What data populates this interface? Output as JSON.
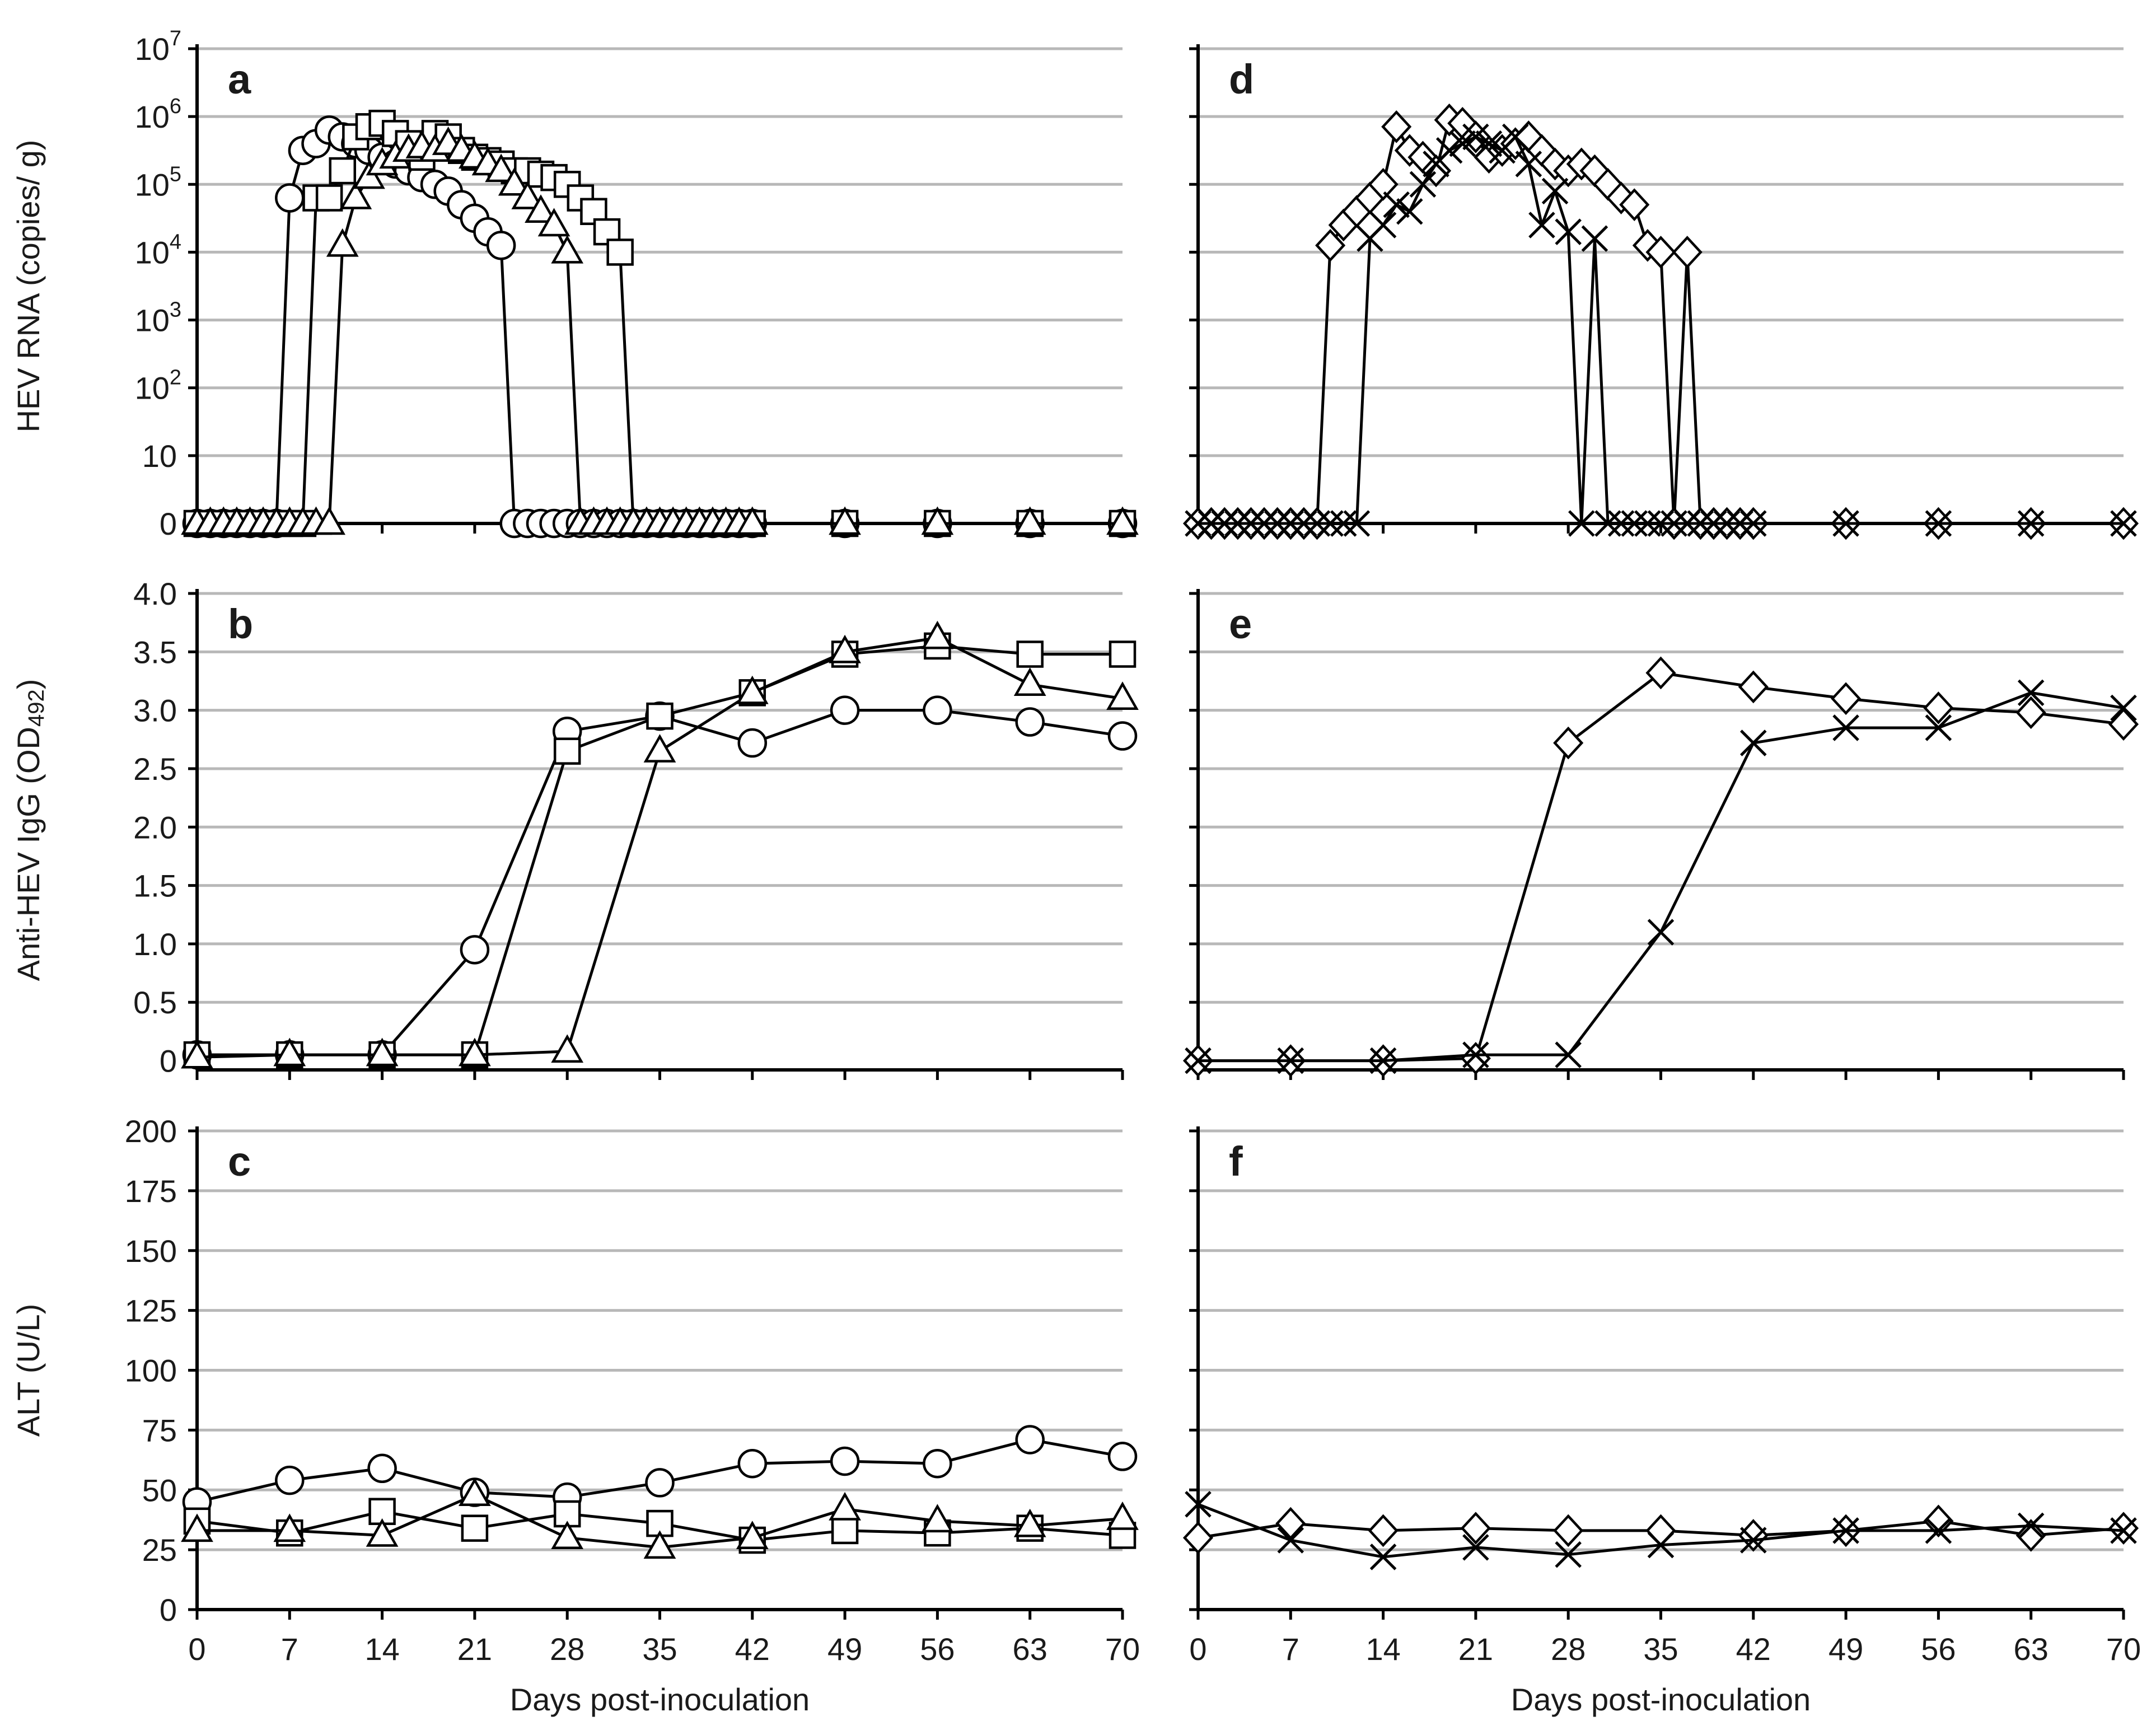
{
  "x_axis": {
    "label": "Days post-inoculation",
    "ticks": [
      0,
      7,
      14,
      21,
      28,
      35,
      42,
      49,
      56,
      63,
      70
    ],
    "range": [
      0,
      70
    ]
  },
  "chart_data": [
    {
      "id": "a",
      "panel": "a",
      "type": "line",
      "marker": "log-scale",
      "ylabel": "HEV RNA (copies/ g)",
      "yscale": "log-with-zero",
      "yticks": [
        {
          "v": 0,
          "base": "0",
          "sup": ""
        },
        {
          "v": 1,
          "base": "10",
          "sup": ""
        },
        {
          "v": 2,
          "base": "10",
          "sup": "2"
        },
        {
          "v": 3,
          "base": "10",
          "sup": "3"
        },
        {
          "v": 4,
          "base": "10",
          "sup": "4"
        },
        {
          "v": 5,
          "base": "10",
          "sup": "5"
        },
        {
          "v": 6,
          "base": "10",
          "sup": "6"
        },
        {
          "v": 7,
          "base": "10",
          "sup": "7"
        }
      ],
      "ylim": [
        0,
        7
      ],
      "series": [
        {
          "name": "circle",
          "marker": "circle",
          "x": [
            0,
            1,
            2,
            3,
            4,
            5,
            6,
            7,
            8,
            9,
            10,
            11,
            12,
            13,
            14,
            15,
            16,
            17,
            18,
            19,
            20,
            21,
            22,
            23,
            24,
            25,
            26,
            27,
            28,
            29,
            30,
            31,
            32,
            33,
            34,
            35,
            36,
            37,
            38,
            39,
            40,
            41,
            42,
            49,
            56,
            63,
            70
          ],
          "y": [
            0,
            0,
            0,
            0,
            0,
            0,
            0,
            4.8,
            5.5,
            5.6,
            5.8,
            5.7,
            5.6,
            5.5,
            5.4,
            5.3,
            5.2,
            5.1,
            5.0,
            4.9,
            4.7,
            4.5,
            4.3,
            4.1,
            0,
            0,
            0,
            0,
            0,
            0,
            0,
            0,
            0,
            0,
            0,
            0,
            0,
            0,
            0,
            0,
            0,
            0,
            0,
            0,
            0,
            0,
            0
          ]
        },
        {
          "name": "square",
          "marker": "square",
          "x": [
            0,
            1,
            2,
            3,
            4,
            5,
            6,
            7,
            8,
            9,
            10,
            11,
            12,
            13,
            14,
            15,
            16,
            17,
            18,
            19,
            20,
            21,
            22,
            23,
            24,
            25,
            26,
            27,
            28,
            29,
            30,
            31,
            32,
            33,
            34,
            35,
            36,
            37,
            38,
            39,
            40,
            41,
            42,
            49,
            56,
            63,
            70
          ],
          "y": [
            0,
            0,
            0,
            0,
            0,
            0,
            0,
            0,
            0,
            4.8,
            4.8,
            5.2,
            5.7,
            5.85,
            5.9,
            5.75,
            5.6,
            5.4,
            5.75,
            5.7,
            5.5,
            5.4,
            5.35,
            5.3,
            5.2,
            5.2,
            5.15,
            5.1,
            5.0,
            4.8,
            4.6,
            4.3,
            4.0,
            0,
            0,
            0,
            0,
            0,
            0,
            0,
            0,
            0,
            0,
            0,
            0,
            0,
            0
          ]
        },
        {
          "name": "triangle",
          "marker": "triangle",
          "x": [
            0,
            1,
            2,
            3,
            4,
            5,
            6,
            7,
            8,
            9,
            10,
            11,
            12,
            13,
            14,
            15,
            16,
            17,
            18,
            19,
            20,
            21,
            22,
            23,
            24,
            25,
            26,
            27,
            28,
            29,
            30,
            31,
            32,
            33,
            34,
            35,
            36,
            37,
            38,
            39,
            40,
            41,
            42,
            49,
            56,
            63,
            70
          ],
          "y": [
            0,
            0,
            0,
            0,
            0,
            0,
            0,
            0,
            0,
            0,
            0,
            4.1,
            4.8,
            5.1,
            5.3,
            5.4,
            5.5,
            5.55,
            5.5,
            5.6,
            5.5,
            5.4,
            5.3,
            5.2,
            5.0,
            4.8,
            4.6,
            4.4,
            4.0,
            0,
            0,
            0,
            0,
            0,
            0,
            0,
            0,
            0,
            0,
            0,
            0,
            0,
            0,
            0,
            0,
            0,
            0
          ]
        }
      ]
    },
    {
      "id": "b",
      "panel": "b",
      "type": "line",
      "ylabel": "Anti-HEV IgG (OD",
      "ylabel_sub": "492",
      "ylabel_end": ")",
      "yscale": "linear",
      "yticks": [
        {
          "v": 0,
          "base": "0",
          "sup": ""
        },
        {
          "v": 0.5,
          "base": "0.5",
          "sup": ""
        },
        {
          "v": 1.0,
          "base": "1.0",
          "sup": ""
        },
        {
          "v": 1.5,
          "base": "1.5",
          "sup": ""
        },
        {
          "v": 2.0,
          "base": "2.0",
          "sup": ""
        },
        {
          "v": 2.5,
          "base": "2.5",
          "sup": ""
        },
        {
          "v": 3.0,
          "base": "3.0",
          "sup": ""
        },
        {
          "v": 3.5,
          "base": "3.5",
          "sup": ""
        },
        {
          "v": 4.0,
          "base": "4.0",
          "sup": ""
        }
      ],
      "ylim": [
        -0.05,
        4.0
      ],
      "series": [
        {
          "name": "circle",
          "marker": "circle",
          "x": [
            0,
            7,
            14,
            21,
            28,
            35,
            42,
            49,
            56,
            63,
            70
          ],
          "y": [
            0.05,
            0.05,
            0.05,
            0.95,
            2.82,
            2.95,
            2.72,
            3.0,
            3.0,
            2.9,
            2.78
          ]
        },
        {
          "name": "square",
          "marker": "square",
          "x": [
            0,
            7,
            14,
            21,
            28,
            35,
            42,
            49,
            56,
            63,
            70
          ],
          "y": [
            0.05,
            0.05,
            0.05,
            0.05,
            2.65,
            2.95,
            3.15,
            3.48,
            3.55,
            3.48,
            3.48
          ]
        },
        {
          "name": "triangle",
          "marker": "triangle",
          "x": [
            0,
            7,
            14,
            21,
            28,
            35,
            42,
            49,
            56,
            63,
            70
          ],
          "y": [
            0.03,
            0.05,
            0.05,
            0.05,
            0.08,
            2.65,
            3.15,
            3.5,
            3.62,
            3.22,
            3.1
          ]
        }
      ]
    },
    {
      "id": "c",
      "panel": "c",
      "type": "line",
      "ylabel": "ALT (U/L)",
      "yscale": "linear",
      "yticks": [
        {
          "v": 0,
          "base": "0",
          "sup": ""
        },
        {
          "v": 25,
          "base": "25",
          "sup": ""
        },
        {
          "v": 50,
          "base": "50",
          "sup": ""
        },
        {
          "v": 75,
          "base": "75",
          "sup": ""
        },
        {
          "v": 100,
          "base": "100",
          "sup": ""
        },
        {
          "v": 125,
          "base": "125",
          "sup": ""
        },
        {
          "v": 150,
          "base": "150",
          "sup": ""
        },
        {
          "v": 175,
          "base": "175",
          "sup": ""
        },
        {
          "v": 200,
          "base": "200",
          "sup": ""
        }
      ],
      "ylim": [
        0,
        200
      ],
      "series": [
        {
          "name": "circle",
          "marker": "circle",
          "x": [
            0,
            7,
            14,
            21,
            28,
            35,
            42,
            49,
            56,
            63,
            70
          ],
          "y": [
            45,
            54,
            59,
            49,
            47,
            53,
            61,
            62,
            61,
            71,
            64
          ]
        },
        {
          "name": "square",
          "marker": "square",
          "x": [
            0,
            7,
            14,
            21,
            28,
            35,
            42,
            49,
            56,
            63,
            70
          ],
          "y": [
            37,
            32,
            41,
            34,
            40,
            36,
            29,
            33,
            32,
            34,
            31
          ]
        },
        {
          "name": "triangle",
          "marker": "triangle",
          "x": [
            0,
            7,
            14,
            21,
            28,
            35,
            42,
            49,
            56,
            63,
            70
          ],
          "y": [
            33,
            33,
            31,
            48,
            30,
            26,
            30,
            42,
            37,
            35,
            38
          ]
        }
      ]
    },
    {
      "id": "d",
      "panel": "d",
      "type": "line",
      "ylabel": "",
      "yscale": "log-with-zero",
      "yticks": [],
      "ylim": [
        0,
        7
      ],
      "series": [
        {
          "name": "diamond",
          "marker": "diamond",
          "x": [
            0,
            1,
            2,
            3,
            4,
            5,
            6,
            7,
            8,
            9,
            10,
            11,
            12,
            13,
            14,
            15,
            16,
            17,
            18,
            19,
            20,
            21,
            22,
            23,
            24,
            25,
            26,
            27,
            28,
            29,
            30,
            31,
            32,
            33,
            34,
            35,
            36,
            37,
            38,
            39,
            40,
            41,
            42,
            49,
            56,
            63,
            70
          ],
          "y": [
            0,
            0,
            0,
            0,
            0,
            0,
            0,
            0,
            0,
            0,
            4.1,
            4.4,
            4.6,
            4.8,
            5.0,
            5.85,
            5.5,
            5.4,
            5.2,
            5.95,
            5.9,
            5.7,
            5.4,
            5.5,
            5.6,
            5.7,
            5.5,
            5.3,
            5.2,
            5.3,
            5.2,
            5.0,
            4.8,
            4.7,
            4.1,
            4.0,
            0,
            4.0,
            0,
            0,
            0,
            0,
            0,
            0,
            0,
            0,
            0
          ]
        },
        {
          "name": "cross",
          "marker": "x",
          "x": [
            0,
            1,
            2,
            3,
            4,
            5,
            6,
            7,
            8,
            9,
            10,
            11,
            12,
            13,
            14,
            15,
            16,
            17,
            18,
            19,
            20,
            21,
            22,
            23,
            24,
            25,
            26,
            27,
            28,
            29,
            30,
            31,
            32,
            33,
            34,
            35,
            36,
            37,
            38,
            39,
            40,
            41,
            42,
            49,
            56,
            63,
            70
          ],
          "y": [
            0,
            0,
            0,
            0,
            0,
            0,
            0,
            0,
            0,
            0,
            0,
            0,
            0,
            4.2,
            4.4,
            4.7,
            4.6,
            5.0,
            5.3,
            5.5,
            5.6,
            5.7,
            5.6,
            5.5,
            5.7,
            5.3,
            4.4,
            4.9,
            4.3,
            0,
            4.2,
            0,
            0,
            0,
            0,
            0,
            0,
            0,
            0,
            0,
            0,
            0,
            0,
            0,
            0,
            0,
            0
          ]
        }
      ]
    },
    {
      "id": "e",
      "panel": "e",
      "type": "line",
      "ylabel": "",
      "yscale": "linear",
      "yticks": [],
      "ylim": [
        -0.05,
        4.0
      ],
      "series": [
        {
          "name": "diamond",
          "marker": "diamond",
          "x": [
            0,
            7,
            14,
            21,
            28,
            35,
            42,
            49,
            56,
            63,
            70
          ],
          "y": [
            0.0,
            0.0,
            0.0,
            0.02,
            2.72,
            3.32,
            3.2,
            3.1,
            3.02,
            2.98,
            2.88
          ]
        },
        {
          "name": "cross",
          "marker": "x",
          "x": [
            0,
            7,
            14,
            21,
            28,
            35,
            42,
            49,
            56,
            63,
            70
          ],
          "y": [
            0.0,
            0.0,
            0.0,
            0.05,
            0.05,
            1.1,
            2.72,
            2.85,
            2.85,
            3.15,
            3.02
          ]
        }
      ]
    },
    {
      "id": "f",
      "panel": "f",
      "type": "line",
      "ylabel": "",
      "yscale": "linear",
      "yticks": [],
      "ylim": [
        0,
        200
      ],
      "series": [
        {
          "name": "diamond",
          "marker": "diamond",
          "x": [
            0,
            7,
            14,
            21,
            28,
            35,
            42,
            49,
            56,
            63,
            70
          ],
          "y": [
            30,
            36,
            33,
            34,
            33,
            33,
            31,
            33,
            37,
            31,
            34
          ]
        },
        {
          "name": "cross",
          "marker": "x",
          "x": [
            0,
            7,
            14,
            21,
            28,
            35,
            42,
            49,
            56,
            63,
            70
          ],
          "y": [
            44,
            29,
            22,
            26,
            23,
            27,
            29,
            33,
            33,
            35,
            33
          ]
        }
      ]
    }
  ]
}
